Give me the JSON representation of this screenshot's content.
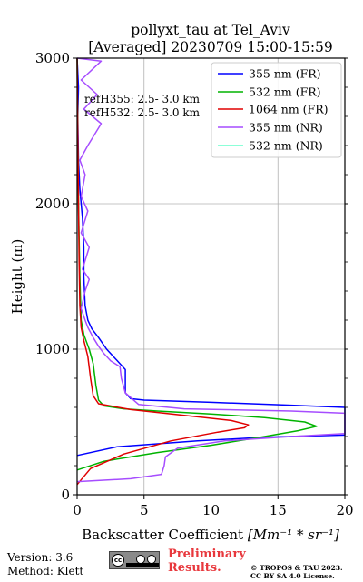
{
  "chart_data": {
    "type": "line",
    "title_line1": "pollyxt_tau at Tel_Aviv",
    "title_line2": "[Averaged] 20230709 15:00-15:59",
    "xlabel_prefix": "Backscatter Coefficient ",
    "xlabel_unit": "[Mm⁻¹ * sr⁻¹]",
    "ylabel": "Height (m)",
    "xlim": [
      0,
      20
    ],
    "ylim": [
      0,
      3000
    ],
    "xticks": [
      0,
      5,
      10,
      15,
      20
    ],
    "yticks": [
      0,
      1000,
      2000,
      3000
    ],
    "grid": true,
    "legend_position": "top-right",
    "annotations": [
      "refH355:  2.5- 3.0 km",
      "refH532:  2.5- 3.0 km"
    ],
    "series": [
      {
        "name": "355 nm (FR)",
        "color": "#0000ff",
        "points": [
          [
            0.0,
            270
          ],
          [
            3.0,
            330
          ],
          [
            9.0,
            370
          ],
          [
            14.0,
            395
          ],
          [
            20.0,
            410
          ],
          [
            20.0,
            600
          ],
          [
            16.0,
            615
          ],
          [
            10.0,
            635
          ],
          [
            5.0,
            650
          ],
          [
            4.0,
            660
          ],
          [
            3.6,
            700
          ],
          [
            3.6,
            860
          ],
          [
            3.0,
            920
          ],
          [
            2.2,
            1000
          ],
          [
            1.6,
            1080
          ],
          [
            1.1,
            1140
          ],
          [
            0.8,
            1200
          ],
          [
            0.6,
            1300
          ],
          [
            0.5,
            1500
          ],
          [
            0.5,
            1700
          ],
          [
            0.4,
            1900
          ],
          [
            0.2,
            2100
          ],
          [
            0.1,
            2300
          ],
          [
            0.05,
            2600
          ],
          [
            0.1,
            2800
          ],
          [
            0.0,
            3000
          ]
        ]
      },
      {
        "name": "532 nm (FR)",
        "color": "#00b300",
        "points": [
          [
            0.0,
            170
          ],
          [
            2.0,
            230
          ],
          [
            6.0,
            290
          ],
          [
            10.0,
            340
          ],
          [
            14.0,
            400
          ],
          [
            16.5,
            440
          ],
          [
            17.9,
            470
          ],
          [
            17.0,
            500
          ],
          [
            14.0,
            530
          ],
          [
            10.0,
            555
          ],
          [
            6.0,
            575
          ],
          [
            3.5,
            590
          ],
          [
            2.0,
            610
          ],
          [
            1.6,
            650
          ],
          [
            1.4,
            750
          ],
          [
            1.2,
            900
          ],
          [
            0.9,
            1000
          ],
          [
            0.5,
            1100
          ],
          [
            0.3,
            1200
          ],
          [
            0.2,
            1500
          ],
          [
            0.1,
            2000
          ],
          [
            0.05,
            2500
          ],
          [
            0.0,
            3000
          ]
        ]
      },
      {
        "name": "1064 nm (FR)",
        "color": "#e00000",
        "points": [
          [
            0.0,
            70
          ],
          [
            1.0,
            180
          ],
          [
            3.5,
            280
          ],
          [
            7.0,
            370
          ],
          [
            10.5,
            430
          ],
          [
            12.5,
            460
          ],
          [
            12.8,
            480
          ],
          [
            11.5,
            510
          ],
          [
            8.0,
            545
          ],
          [
            4.0,
            585
          ],
          [
            1.6,
            625
          ],
          [
            1.2,
            680
          ],
          [
            1.0,
            800
          ],
          [
            0.8,
            950
          ],
          [
            0.5,
            1060
          ],
          [
            0.3,
            1150
          ],
          [
            0.2,
            1300
          ],
          [
            0.15,
            1600
          ],
          [
            0.1,
            2000
          ],
          [
            0.05,
            2500
          ],
          [
            0.0,
            3000
          ]
        ]
      },
      {
        "name": "355 nm (NR)",
        "color": "#a64dff",
        "points": [
          [
            0.0,
            90
          ],
          [
            4.0,
            110
          ],
          [
            6.3,
            140
          ],
          [
            6.5,
            200
          ],
          [
            6.6,
            260
          ],
          [
            7.5,
            320
          ],
          [
            11.0,
            370
          ],
          [
            16.0,
            400
          ],
          [
            20.0,
            420
          ],
          [
            20.0,
            560
          ],
          [
            16.0,
            575
          ],
          [
            8.0,
            590
          ],
          [
            4.6,
            620
          ],
          [
            3.6,
            700
          ],
          [
            3.3,
            800
          ],
          [
            3.2,
            880
          ],
          [
            2.5,
            920
          ],
          [
            2.0,
            970
          ],
          [
            1.6,
            1020
          ],
          [
            1.2,
            1080
          ],
          [
            0.8,
            1150
          ],
          [
            0.6,
            1200
          ],
          [
            0.3,
            1280
          ],
          [
            0.6,
            1400
          ],
          [
            0.9,
            1480
          ],
          [
            0.4,
            1550
          ],
          [
            0.9,
            1700
          ],
          [
            0.3,
            1800
          ],
          [
            0.8,
            1950
          ],
          [
            0.3,
            2050
          ],
          [
            0.6,
            2200
          ],
          [
            0.2,
            2300
          ],
          [
            0.8,
            2400
          ],
          [
            1.8,
            2550
          ],
          [
            0.5,
            2650
          ],
          [
            1.5,
            2750
          ],
          [
            0.3,
            2850
          ],
          [
            1.8,
            2980
          ],
          [
            0.0,
            3000
          ]
        ]
      },
      {
        "name": "532 nm (NR)",
        "color": "#66ffcc",
        "points": []
      }
    ]
  },
  "footer": {
    "version": "Version: 3.6",
    "method": "Method: Klett",
    "license_badge_text": "cc",
    "preliminary_line1": "Preliminary",
    "preliminary_line2": "Results.",
    "copyright_line1": "© TROPOS & TAU 2023.",
    "copyright_line2": "CC BY SA 4.0 License."
  }
}
